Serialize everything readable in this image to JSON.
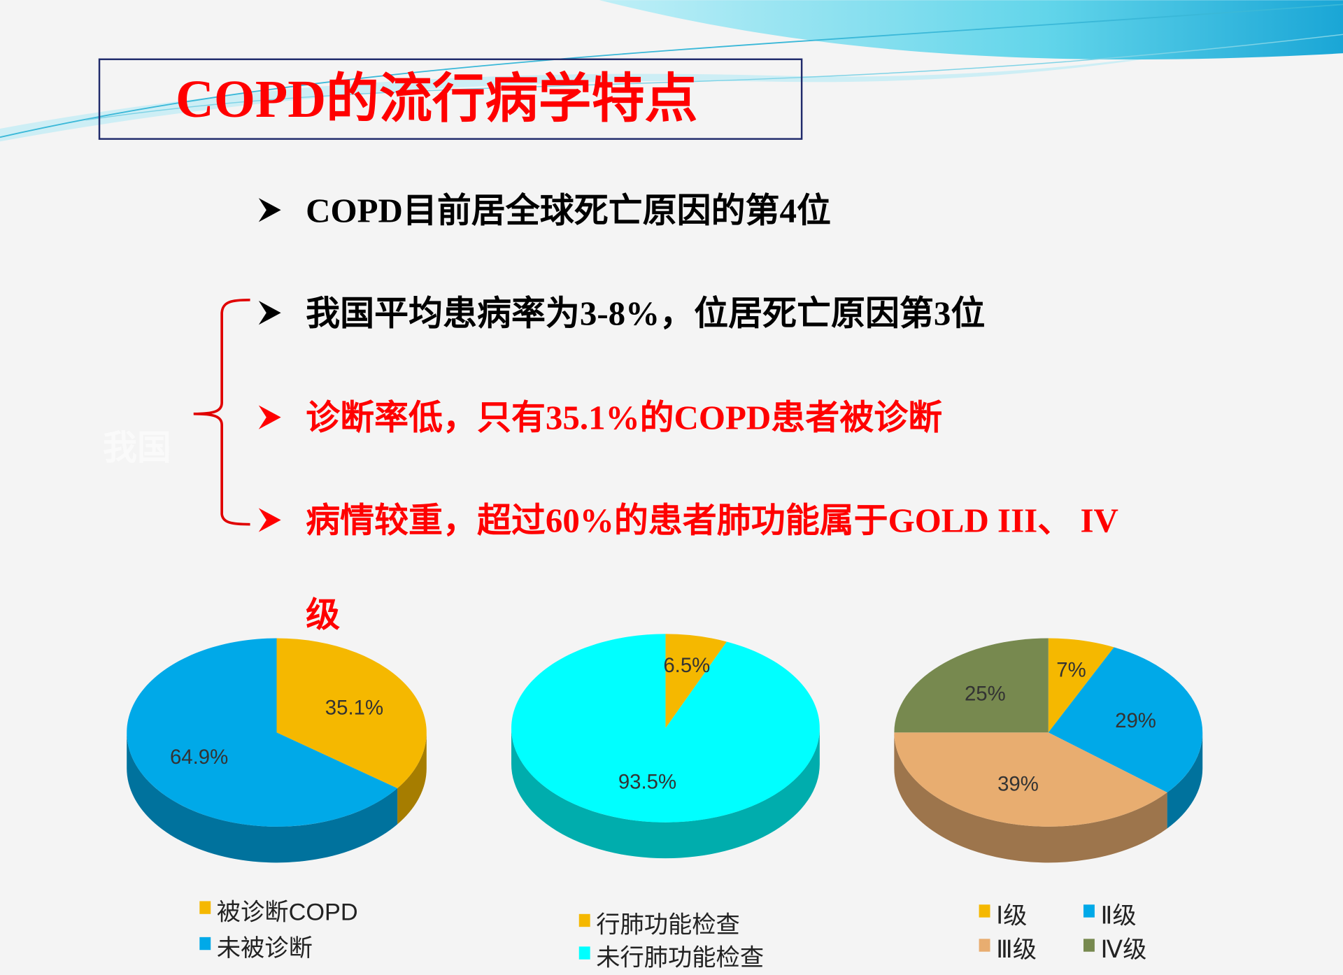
{
  "title": "COPD的流行病学特点",
  "side_note": "我国",
  "bullets": [
    {
      "lines": [
        "COPD目前居全球死亡原因的第4位"
      ],
      "color": "#000000"
    },
    {
      "lines": [
        "我国平均患病率为3-8%，位居死亡原因第3位"
      ],
      "color": "#000000"
    },
    {
      "lines": [
        "诊断率低，只有35.1%的COPD患者被诊断"
      ],
      "color": "#ff0000"
    },
    {
      "lines": [
        "病情较重，超过60%的患者肺功能属于GOLD III、 IV",
        "级"
      ],
      "color": "#ff0000"
    }
  ],
  "chart_data": [
    {
      "type": "pie",
      "categories": [
        "被诊断COPD",
        "未被诊断"
      ],
      "values": [
        35.1,
        64.9
      ],
      "value_labels": [
        "35.1%",
        "64.9%"
      ],
      "colors": [
        "#f5b800",
        "#00a9e8"
      ]
    },
    {
      "type": "pie",
      "categories": [
        "行肺功能检查",
        "未行肺功能检查"
      ],
      "values": [
        6.5,
        93.5
      ],
      "value_labels": [
        "6.5%",
        "93.5%"
      ],
      "colors": [
        "#f5b800",
        "#00ffff"
      ]
    },
    {
      "type": "pie",
      "categories": [
        "Ⅰ级",
        "Ⅱ级",
        "Ⅲ级",
        "Ⅳ级"
      ],
      "values": [
        7,
        29,
        39,
        25
      ],
      "value_labels": [
        "7%",
        "29%",
        "39%",
        "25%"
      ],
      "colors": [
        "#f5b800",
        "#00a9e8",
        "#e8ad70",
        "#77894f"
      ]
    }
  ]
}
